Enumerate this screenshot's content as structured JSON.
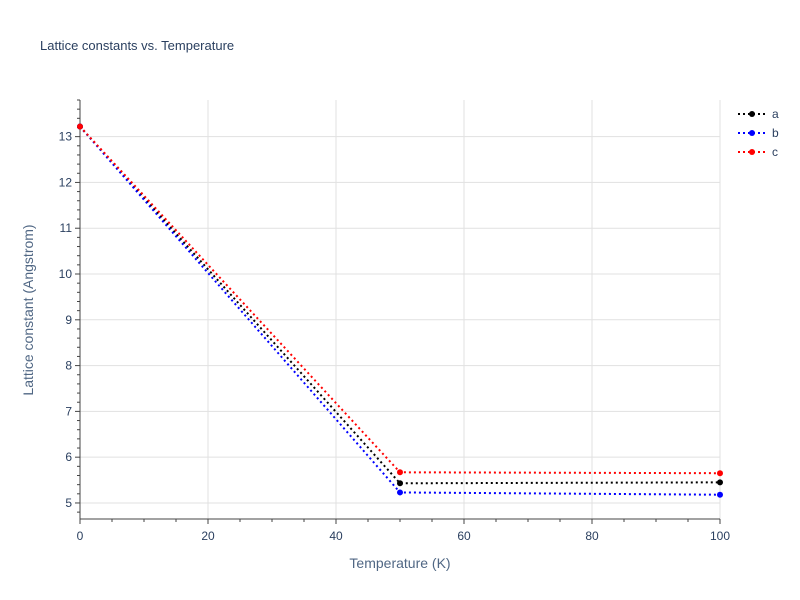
{
  "chart_data": {
    "type": "line",
    "title": "Lattice constants vs. Temperature",
    "xlabel": "Temperature (K)",
    "ylabel": "Lattice constant (Angstrom)",
    "xlim": [
      0,
      100
    ],
    "ylim": [
      4.65,
      13.8
    ],
    "x_ticks": [
      0,
      20,
      40,
      60,
      80,
      100
    ],
    "y_ticks": [
      5,
      6,
      7,
      8,
      9,
      10,
      11,
      12,
      13
    ],
    "grid": true,
    "legend_position": "top-right",
    "series": [
      {
        "name": "a",
        "color": "#000000",
        "x": [
          0,
          50,
          100
        ],
        "y": [
          13.22,
          5.43,
          5.45
        ]
      },
      {
        "name": "b",
        "color": "#0000ff",
        "x": [
          0,
          50,
          100
        ],
        "y": [
          13.22,
          5.23,
          5.18
        ]
      },
      {
        "name": "c",
        "color": "#ff0000",
        "x": [
          0,
          50,
          100
        ],
        "y": [
          13.22,
          5.67,
          5.65
        ]
      }
    ]
  }
}
